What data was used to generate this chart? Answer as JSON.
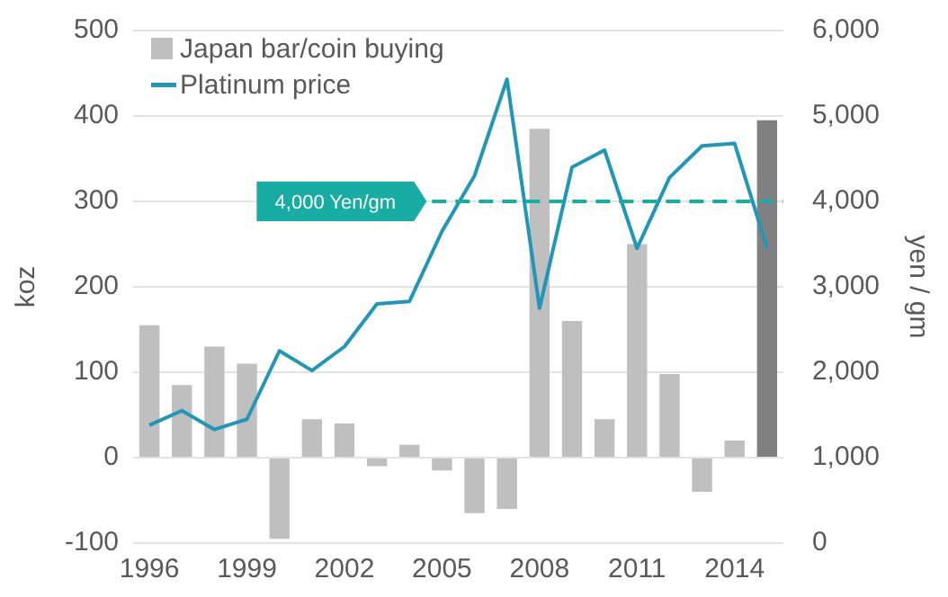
{
  "chart_data": {
    "type": "bar",
    "ylabel": "koz",
    "y2label": "yen / gm",
    "categories": [
      "1996",
      null,
      null,
      "1999",
      null,
      null,
      "2002",
      null,
      null,
      "2005",
      null,
      null,
      "2008",
      null,
      null,
      "2011",
      null,
      null,
      "2014",
      null
    ],
    "series": [
      {
        "name": "Japan bar/coin buying",
        "colors": [
          "#bfbfbf",
          "#bfbfbf",
          "#bfbfbf",
          "#bfbfbf",
          "#bfbfbf",
          "#bfbfbf",
          "#bfbfbf",
          "#bfbfbf",
          "#bfbfbf",
          "#bfbfbf",
          "#bfbfbf",
          "#bfbfbf",
          "#bfbfbf",
          "#bfbfbf",
          "#bfbfbf",
          "#bfbfbf",
          "#bfbfbf",
          "#bfbfbf",
          "#bfbfbf",
          "#808080"
        ],
        "values": [
          155,
          85,
          130,
          110,
          -95,
          45,
          40,
          -10,
          15,
          -15,
          -65,
          -60,
          385,
          160,
          45,
          250,
          98,
          -40,
          20,
          395
        ]
      },
      {
        "name": "Platinum price",
        "type": "line",
        "axis": "y2",
        "color": "#1f97b8",
        "values": [
          1380,
          1550,
          1330,
          1450,
          2250,
          2020,
          2300,
          2800,
          2830,
          3650,
          4300,
          5430,
          2750,
          4400,
          4600,
          3450,
          4280,
          4650,
          4680,
          3450
        ]
      }
    ],
    "ylim": [
      -100,
      500
    ],
    "yticks": [
      -100,
      0,
      100,
      200,
      300,
      400,
      500
    ],
    "y2lim": [
      0,
      6000
    ],
    "y2ticks": [
      {
        "value": 0,
        "label": "0"
      },
      {
        "value": 1000,
        "label": "1,000"
      },
      {
        "value": 2000,
        "label": "2,000"
      },
      {
        "value": 3000,
        "label": "3,000"
      },
      {
        "value": 4000,
        "label": "4,000"
      },
      {
        "value": 5000,
        "label": "5,000"
      },
      {
        "value": 6000,
        "label": "6,000"
      }
    ],
    "ref_lines": [
      {
        "axis": "y2",
        "value": 4000,
        "label": "4,000 Yen/gm",
        "color": "#17aca4",
        "line_style": "dashed"
      }
    ],
    "grid": "y",
    "legend": "top left",
    "marker": "none",
    "line_style": "solid"
  }
}
